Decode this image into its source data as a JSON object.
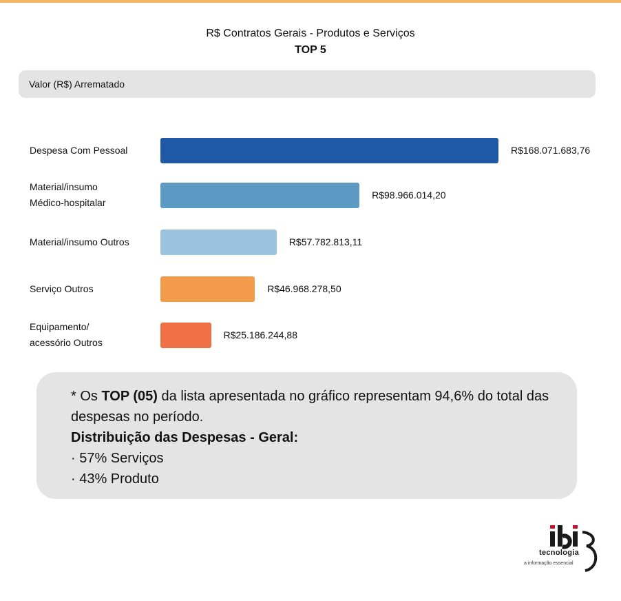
{
  "title": "R$ Contratos Gerais - Produtos e Serviços",
  "subtitle": "TOP 5",
  "header_label": "Valor (R$) Arrematado",
  "chart_data": {
    "type": "bar",
    "orientation": "horizontal",
    "categories": [
      "Despesa Com Pessoal",
      "Material/insumo\nMédico-hospitalar",
      "Material/insumo Outros",
      "Serviço Outros",
      "Equipamento/\nacessório Outros"
    ],
    "values": [
      168071683.76,
      98966014.2,
      57782813.11,
      46968278.5,
      25186244.88
    ],
    "value_labels": [
      "R$168.071.683,76",
      "R$98.966.014,20",
      "R$57.782.813,11",
      "R$46.968.278,50",
      "R$25.186.244,88"
    ],
    "colors": [
      "#1f59a6",
      "#5e9bc4",
      "#9bc3dd",
      "#f29b4b",
      "#ef7045"
    ],
    "grid": false,
    "legend": "none"
  },
  "note": {
    "line1_prefix": "* Os ",
    "line1_bold": "TOP (05)",
    "line1_suffix": " da lista apresentada no gráfico representam 94,6% do total das despesas no período.",
    "heading": "Distribuição das Despesas - Geral:",
    "items": [
      "· 57% Serviços",
      "· 43% Produto"
    ]
  },
  "logo": {
    "wordmark": "ibi",
    "name": "tecnologia",
    "tagline": "a informação essencial"
  }
}
